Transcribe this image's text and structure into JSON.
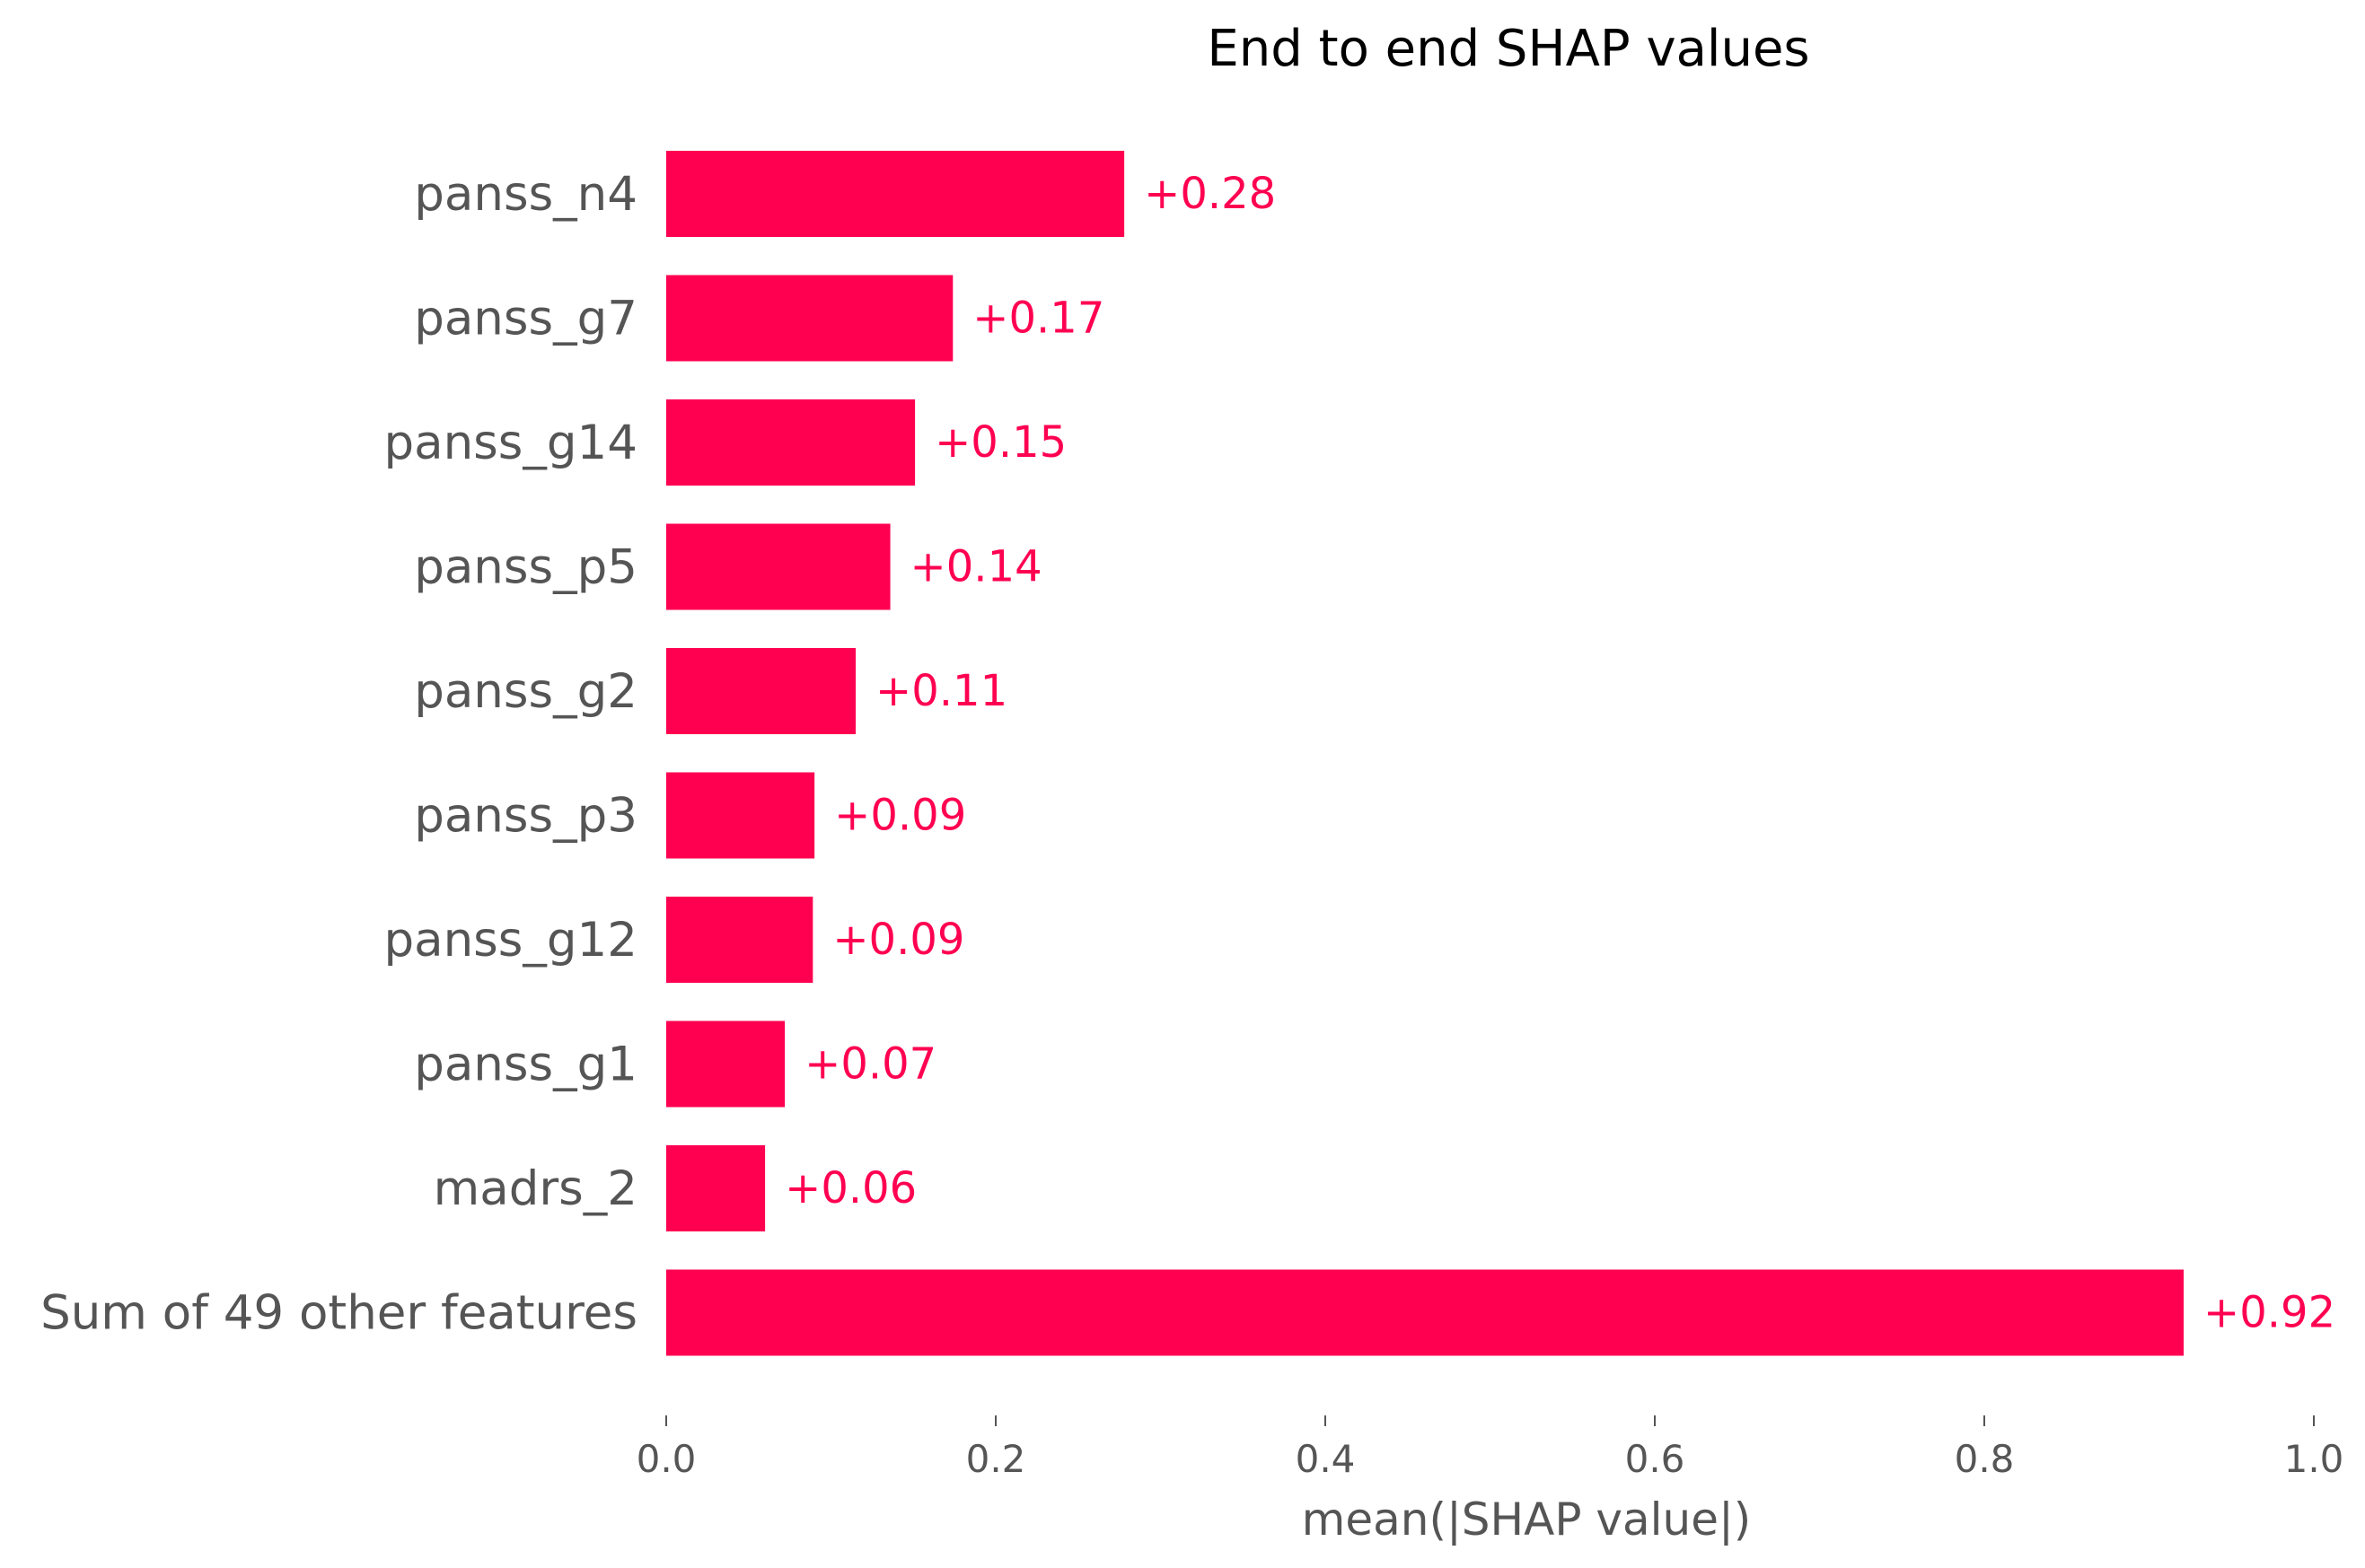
{
  "chart_data": {
    "type": "bar",
    "orientation": "horizontal",
    "title": "End to end SHAP values",
    "xlabel": "mean(|SHAP value|)",
    "ylabel": "",
    "xlim": [
      0,
      1.0
    ],
    "xticks": [
      0.0,
      0.2,
      0.4,
      0.6,
      0.8,
      1.0
    ],
    "xtick_labels": [
      "0.0",
      "0.2",
      "0.4",
      "0.6",
      "0.8",
      "1.0"
    ],
    "grid": false,
    "legend": "none",
    "bar_color": "#ff0051",
    "label_color": "#ff0051",
    "categories": [
      "panss_n4",
      "panss_g7",
      "panss_g14",
      "panss_p5",
      "panss_g2",
      "panss_p3",
      "panss_g12",
      "panss_g1",
      "madrs_2",
      "Sum of 49 other features"
    ],
    "values": [
      0.278,
      0.174,
      0.151,
      0.136,
      0.115,
      0.09,
      0.089,
      0.072,
      0.06,
      0.921
    ],
    "value_labels": [
      "+0.28",
      "+0.17",
      "+0.15",
      "+0.14",
      "+0.11",
      "+0.09",
      "+0.09",
      "+0.07",
      "+0.06",
      "+0.92"
    ]
  }
}
